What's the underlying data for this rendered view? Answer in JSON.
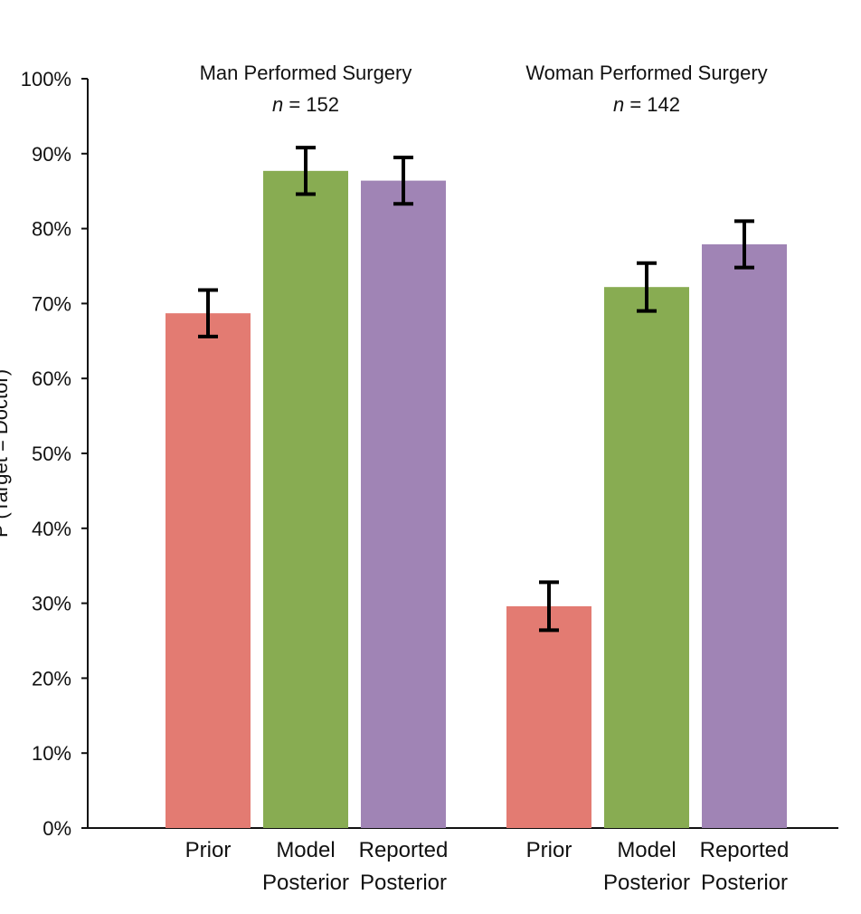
{
  "chart_data": {
    "type": "bar",
    "xlabel": "",
    "ylabel": "P (Target = Doctor)",
    "ylim": [
      0,
      100
    ],
    "y_tick_labels": [
      "0%",
      "10%",
      "20%",
      "30%",
      "40%",
      "50%",
      "60%",
      "70%",
      "80%",
      "90%",
      "100%"
    ],
    "y_ticks": [
      0,
      10,
      20,
      30,
      40,
      50,
      60,
      70,
      80,
      90,
      100
    ],
    "grid": false,
    "legend": "none",
    "groups": [
      {
        "title": "Man Performed Surgery",
        "n_label": "n",
        "n_value": "= 152",
        "bars": [
          {
            "label_lines": [
              "Prior"
            ],
            "value": 68.7,
            "error_low": 65.6,
            "error_high": 71.8,
            "color": "#e37b72"
          },
          {
            "label_lines": [
              "Model",
              "Posterior"
            ],
            "value": 87.7,
            "error_low": 84.6,
            "error_high": 90.8,
            "color": "#88ac52"
          },
          {
            "label_lines": [
              "Reported",
              "Posterior"
            ],
            "value": 86.4,
            "error_low": 83.3,
            "error_high": 89.5,
            "color": "#a084b5"
          }
        ]
      },
      {
        "title": "Woman Performed Surgery",
        "n_label": "n",
        "n_value": " = 142",
        "bars": [
          {
            "label_lines": [
              "Prior"
            ],
            "value": 29.6,
            "error_low": 26.4,
            "error_high": 32.8,
            "color": "#e37b72"
          },
          {
            "label_lines": [
              "Model",
              "Posterior"
            ],
            "value": 72.2,
            "error_low": 69.0,
            "error_high": 75.4,
            "color": "#88ac52"
          },
          {
            "label_lines": [
              "Reported",
              "Posterior"
            ],
            "value": 77.9,
            "error_low": 74.8,
            "error_high": 81.0,
            "color": "#a084b5"
          }
        ]
      }
    ]
  }
}
